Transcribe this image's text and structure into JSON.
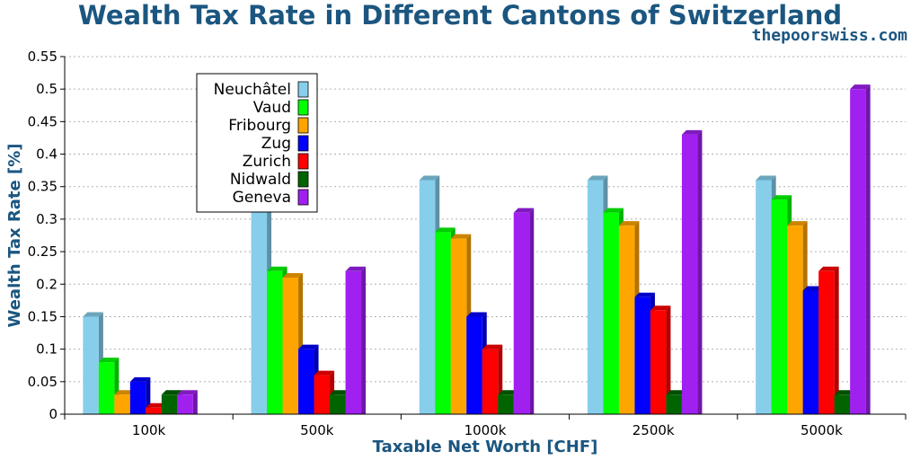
{
  "header": {
    "title": "Wealth Tax Rate in Different Cantons of Switzerland",
    "site": "thepoorswiss.com"
  },
  "chart_data": {
    "type": "bar",
    "title": "Wealth Tax Rate in Different Cantons of Switzerland",
    "xlabel": "Taxable Net Worth [CHF]",
    "ylabel": "Wealth Tax Rate [%]",
    "categories": [
      "100k",
      "500k",
      "1000k",
      "2500k",
      "5000k"
    ],
    "ylim": [
      0,
      0.55
    ],
    "yticks": [
      "0",
      "0.05",
      "0.1",
      "0.15",
      "0.2",
      "0.25",
      "0.3",
      "0.35",
      "0.4",
      "0.45",
      "0.5",
      "0.55"
    ],
    "grid": true,
    "legend_position": "top-left",
    "series": [
      {
        "name": "Neuchâtel",
        "color": "#87ceeb",
        "values": [
          0.15,
          0.36,
          0.36,
          0.36,
          0.36
        ]
      },
      {
        "name": "Vaud",
        "color": "#00ff00",
        "values": [
          0.08,
          0.22,
          0.28,
          0.31,
          0.33
        ]
      },
      {
        "name": "Fribourg",
        "color": "#ffa500",
        "values": [
          0.03,
          0.21,
          0.27,
          0.29,
          0.29
        ]
      },
      {
        "name": "Zug",
        "color": "#0000ff",
        "values": [
          0.05,
          0.1,
          0.15,
          0.18,
          0.19
        ]
      },
      {
        "name": "Zurich",
        "color": "#ff0000",
        "values": [
          0.01,
          0.06,
          0.1,
          0.16,
          0.22
        ]
      },
      {
        "name": "Nidwald",
        "color": "#006400",
        "values": [
          0.03,
          0.03,
          0.03,
          0.03,
          0.03
        ]
      },
      {
        "name": "Geneva",
        "color": "#a020f0",
        "values": [
          0.03,
          0.22,
          0.31,
          0.43,
          0.5
        ]
      }
    ]
  }
}
